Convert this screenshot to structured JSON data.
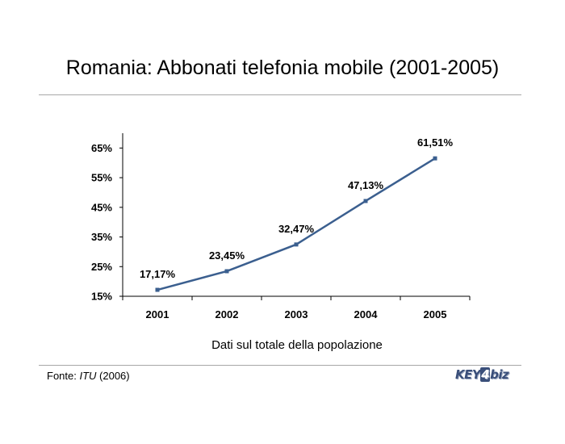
{
  "header": {
    "title": "Romania: Abbonati telefonia mobile (2001-2005)"
  },
  "footer": {
    "source_prefix": "Fonte: ",
    "source_name": "ITU",
    "source_year": " (2006)"
  },
  "logo": {
    "part1": "KEY",
    "part2": "4",
    "part3": "biz"
  },
  "chart_data": {
    "type": "line",
    "title": "Romania: Abbonati telefonia mobile (2001-2005)",
    "xlabel": "Dati sul totale della popolazione",
    "ylabel": "",
    "categories": [
      "2001",
      "2002",
      "2003",
      "2004",
      "2005"
    ],
    "series": [
      {
        "name": "",
        "values": [
          17.17,
          23.45,
          32.47,
          47.13,
          61.51
        ],
        "color": "#3b5f8f"
      }
    ],
    "data_labels": [
      "17,17%",
      "23,45%",
      "32,47%",
      "47,13%",
      "61,51%"
    ],
    "ylim": [
      15,
      70
    ],
    "yticks": [
      15,
      25,
      35,
      45,
      55,
      65
    ],
    "ytick_labels": [
      "15%",
      "25%",
      "35%",
      "45%",
      "55%",
      "65%"
    ],
    "grid": false,
    "legend": "none"
  }
}
